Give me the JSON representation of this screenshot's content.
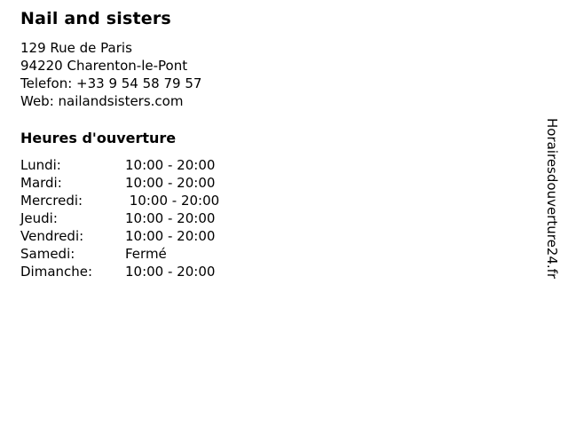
{
  "business": {
    "name": "Nail and sisters",
    "address_line1": "129 Rue de Paris",
    "address_line2": "94220 Charenton-le-Pont",
    "phone_line": "Telefon: +33 9 54 58 79 57",
    "website_line": "Web: nailandsisters.com"
  },
  "hours": {
    "heading": "Heures d'ouverture",
    "rows": [
      {
        "day": "Lundi:",
        "time": "10:00 - 20:00"
      },
      {
        "day": "Mardi:",
        "time": "10:00 - 20:00"
      },
      {
        "day": "Mercredi:",
        "time": " 10:00 - 20:00"
      },
      {
        "day": "Jeudi:",
        "time": "10:00 - 20:00"
      },
      {
        "day": "Vendredi:",
        "time": "10:00 - 20:00"
      },
      {
        "day": "Samedi:",
        "time": "Fermé"
      },
      {
        "day": "Dimanche:",
        "time": "10:00 - 20:00"
      }
    ]
  },
  "watermark": {
    "site_name": "Horairesdouverture24.fr"
  },
  "colors": {
    "text": "#000000",
    "background": "#ffffff"
  }
}
